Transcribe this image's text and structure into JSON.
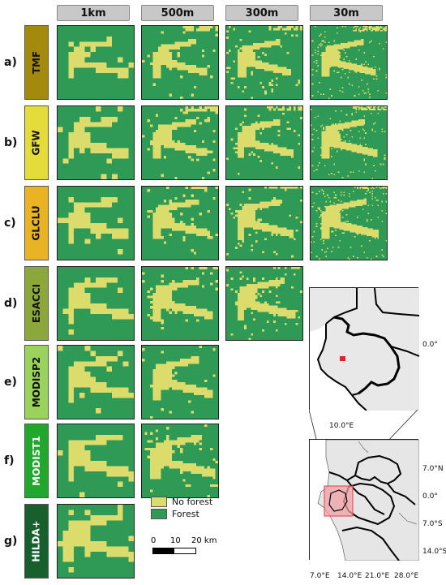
{
  "columns": [
    "1km",
    "500m",
    "300m",
    "30m"
  ],
  "rows": [
    {
      "letter": "a)",
      "product": "TMF",
      "color": "#a38a0c",
      "text_color": "#111111"
    },
    {
      "letter": "b)",
      "product": "GFW",
      "color": "#e3dc3a",
      "text_color": "#111111"
    },
    {
      "letter": "c)",
      "product": "GLCLU",
      "color": "#e9b324",
      "text_color": "#111111"
    },
    {
      "letter": "d)",
      "product": "ESACCI",
      "color": "#8ca83a",
      "text_color": "#111111"
    },
    {
      "letter": "e)",
      "product": "MODISP2",
      "color": "#9ad25c",
      "text_color": "#111111"
    },
    {
      "letter": "f)",
      "product": "MODIST1",
      "color": "#20a82c",
      "text_color": "#ffffff"
    },
    {
      "letter": "g)",
      "product": "HILDA+",
      "color": "#17602e",
      "text_color": "#ffffff"
    }
  ],
  "legend": {
    "items": [
      {
        "label": "No forest",
        "color": "#dcdc6c"
      },
      {
        "label": "Forest",
        "color": "#2f9a55"
      }
    ]
  },
  "scalebar": {
    "labels": [
      "0",
      "10",
      "20 km"
    ]
  },
  "inset_map": {
    "lon_label": "10.0°E",
    "lat_label": "0.0°"
  },
  "overview_map": {
    "lon_labels": [
      "7.0°E",
      "14.0°E",
      "21.0°E",
      "28.0°E"
    ],
    "lat_labels": [
      "7.0°N",
      "0.0°",
      "7.0°S",
      "14.0°S"
    ]
  }
}
